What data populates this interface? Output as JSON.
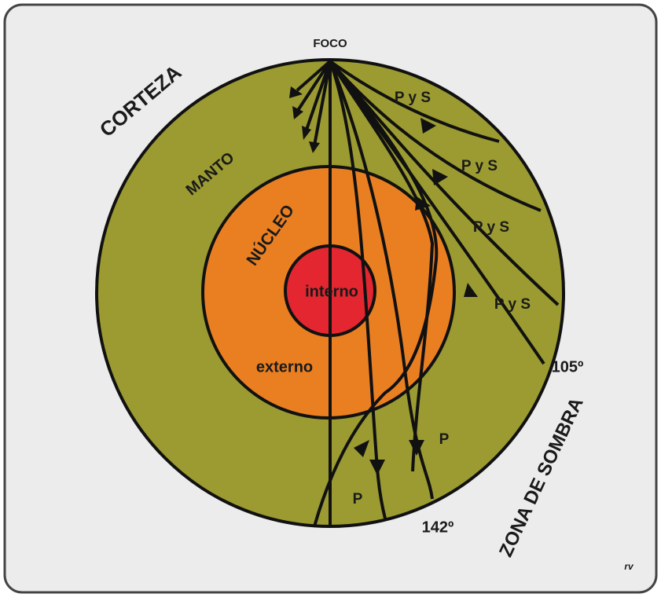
{
  "focus": "FOCO",
  "layers": {
    "crust": "CORTEZA",
    "mantle": "MANTO",
    "core": "NÚCLEO",
    "inner_core": "interno",
    "outer_core": "externo"
  },
  "wave_labels": [
    "P y S",
    "P y S",
    "P y S",
    "P y S",
    "P",
    "P"
  ],
  "angles": [
    "105º",
    "142º"
  ],
  "shadow_zone": "ZONA DE SOMBRA",
  "signature": "rv"
}
